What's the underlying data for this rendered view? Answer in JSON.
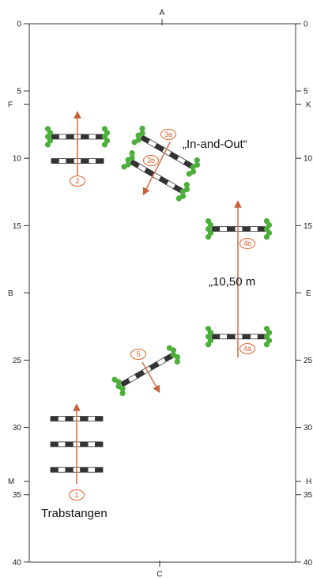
{
  "arena": {
    "top_letter": "A",
    "bottom_letter": "C",
    "side_letters": [
      {
        "letter_left": "F",
        "letter_right": "K",
        "meter": 6
      },
      {
        "letter_left": "B",
        "letter_right": "E",
        "meter": 20
      },
      {
        "letter_left": "M",
        "letter_right": "H",
        "meter": 34
      }
    ],
    "scale_ticks": [
      "0",
      "5",
      "10",
      "15",
      "25",
      "30",
      "35",
      "40"
    ],
    "tick_values": [
      0,
      5,
      10,
      15,
      25,
      30,
      35,
      40
    ]
  },
  "labels": {
    "in_and_out": "„In-and-Out“",
    "distance": "„10,50 m",
    "trabstangen": "Trabstangen"
  },
  "markers": [
    {
      "text": "1"
    },
    {
      "text": "2"
    },
    {
      "text": "3a"
    },
    {
      "text": "3b"
    },
    {
      "text": "4a"
    },
    {
      "text": "4b"
    },
    {
      "text": "5"
    }
  ],
  "colors": {
    "arrow": "#d9744f",
    "marker": "#e0602a",
    "pole_dark": "#333333",
    "pole_light": "#ffffff",
    "hedge": "#4caf3a",
    "border": "#333333"
  }
}
